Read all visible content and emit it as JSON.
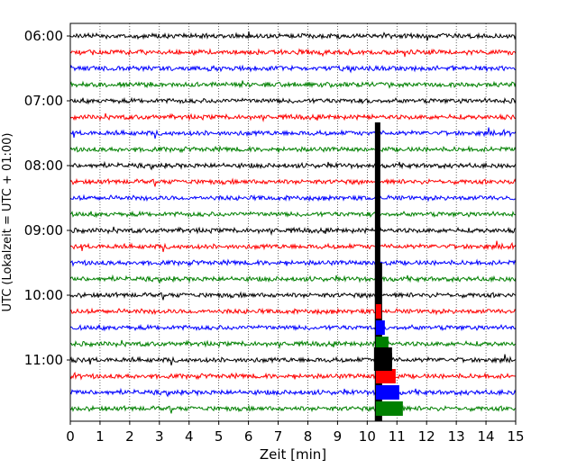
{
  "chart_data": {
    "type": "line",
    "title": "",
    "xlabel": "Zeit  [min]",
    "ylabel": "UTC (Lokalzeit = UTC + 01:00)",
    "xlim": [
      0,
      15
    ],
    "x_ticks": [
      "0",
      "1",
      "2",
      "3",
      "4",
      "5",
      "6",
      "7",
      "8",
      "9",
      "10",
      "11",
      "12",
      "13",
      "14",
      "15"
    ],
    "y_ticks": [
      "06:00",
      "07:00",
      "08:00",
      "09:00",
      "10:00",
      "11:00"
    ],
    "y_tick_rows": [
      0,
      4,
      8,
      12,
      16,
      20
    ],
    "grid_x": true,
    "legend": "none",
    "trace_interval_min": 15,
    "trace_start_utc": "06:00",
    "trace_count": 24,
    "trace_colors": [
      "#000000",
      "#ff0000",
      "#0000ff",
      "#008000"
    ],
    "event": {
      "minute": 10.35,
      "start_trace": 9,
      "end_trace": 23
    },
    "series": [
      {
        "trace": "06:00",
        "color": "#000000"
      },
      {
        "trace": "06:15",
        "color": "#ff0000"
      },
      {
        "trace": "06:30",
        "color": "#0000ff"
      },
      {
        "trace": "06:45",
        "color": "#008000"
      },
      {
        "trace": "07:00",
        "color": "#000000"
      },
      {
        "trace": "07:15",
        "color": "#ff0000"
      },
      {
        "trace": "07:30",
        "color": "#0000ff"
      },
      {
        "trace": "07:45",
        "color": "#008000"
      },
      {
        "trace": "08:00",
        "color": "#000000"
      },
      {
        "trace": "08:15",
        "color": "#ff0000"
      },
      {
        "trace": "08:30",
        "color": "#0000ff"
      },
      {
        "trace": "08:45",
        "color": "#008000"
      },
      {
        "trace": "09:00",
        "color": "#000000"
      },
      {
        "trace": "09:15",
        "color": "#ff0000"
      },
      {
        "trace": "09:30",
        "color": "#0000ff"
      },
      {
        "trace": "09:45",
        "color": "#008000"
      },
      {
        "trace": "10:00",
        "color": "#000000"
      },
      {
        "trace": "10:15",
        "color": "#ff0000"
      },
      {
        "trace": "10:30",
        "color": "#0000ff"
      },
      {
        "trace": "10:45",
        "color": "#008000"
      },
      {
        "trace": "11:00",
        "color": "#000000"
      },
      {
        "trace": "11:15",
        "color": "#ff0000"
      },
      {
        "trace": "11:30",
        "color": "#0000ff"
      },
      {
        "trace": "11:45",
        "color": "#008000"
      }
    ]
  }
}
